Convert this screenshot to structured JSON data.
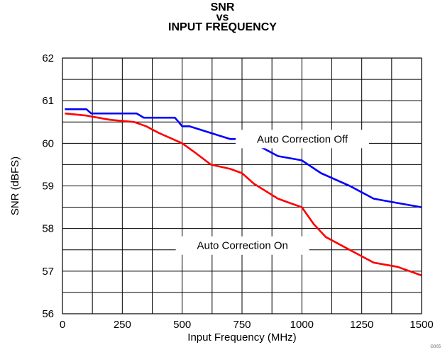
{
  "chart_data": {
    "type": "line",
    "title": [
      "SNR",
      "vs",
      "INPUT FREQUENCY"
    ],
    "xlabel": "Input Frequency (MHz)",
    "ylabel": "SNR (dBFS)",
    "xlim": [
      0,
      1500
    ],
    "ylim": [
      56,
      62
    ],
    "xticks": [
      0,
      250,
      500,
      750,
      1000,
      1250,
      1500
    ],
    "yticks": [
      56,
      57,
      58,
      59,
      60,
      61,
      62
    ],
    "grid": true,
    "series": [
      {
        "name": "Auto Correction Off",
        "color": "#0000ff",
        "x": [
          10,
          100,
          120,
          310,
          340,
          470,
          500,
          530,
          700,
          760,
          800,
          900,
          1000,
          1080,
          1200,
          1300,
          1350,
          1500
        ],
        "y": [
          60.8,
          60.8,
          60.7,
          60.7,
          60.6,
          60.6,
          60.4,
          60.4,
          60.1,
          60.1,
          60.0,
          59.7,
          59.6,
          59.3,
          59.0,
          58.7,
          58.65,
          58.5
        ]
      },
      {
        "name": "Auto Correction On",
        "color": "#ff0000",
        "x": [
          10,
          100,
          200,
          300,
          350,
          400,
          500,
          550,
          620,
          700,
          750,
          800,
          900,
          950,
          1000,
          1050,
          1100,
          1200,
          1300,
          1400,
          1500
        ],
        "y": [
          60.7,
          60.65,
          60.55,
          60.5,
          60.4,
          60.25,
          60.0,
          59.8,
          59.5,
          59.4,
          59.3,
          59.05,
          58.7,
          58.6,
          58.5,
          58.1,
          57.8,
          57.5,
          57.2,
          57.1,
          56.9
        ]
      }
    ],
    "annotations": [
      {
        "text": "Auto Correction Off",
        "series": 0
      },
      {
        "text": "Auto Correction On",
        "series": 1
      }
    ],
    "figure_code": "G005"
  }
}
